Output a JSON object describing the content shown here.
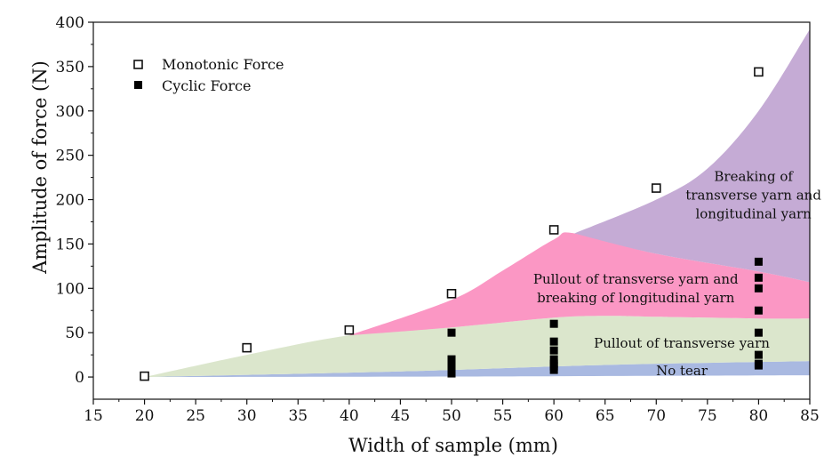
{
  "chart_data": {
    "type": "scatter",
    "title": "",
    "xlabel": "Width of sample  (mm)",
    "ylabel": "Amplitude of force (N)",
    "xlim": [
      15,
      85
    ],
    "ylim": [
      -25,
      400
    ],
    "xticks": [
      15,
      20,
      25,
      30,
      35,
      40,
      45,
      50,
      55,
      60,
      65,
      70,
      75,
      80,
      85
    ],
    "yticks": [
      0,
      50,
      100,
      150,
      200,
      250,
      300,
      350,
      400
    ],
    "legend_position": "top-left",
    "series": [
      {
        "name": "Monotonic Force",
        "marker": "open-square",
        "x": [
          20,
          30,
          40,
          50,
          60,
          70,
          80
        ],
        "y": [
          1,
          33,
          53,
          94,
          166,
          213,
          344
        ]
      },
      {
        "name": "Cyclic Force",
        "marker": "filled-square",
        "x": [
          50,
          50,
          50,
          50,
          50,
          60,
          60,
          60,
          60,
          60,
          60,
          60,
          80,
          80,
          80,
          80,
          80,
          80,
          80,
          80
        ],
        "y": [
          50,
          20,
          15,
          10,
          4,
          60,
          40,
          30,
          20,
          15,
          12,
          8,
          130,
          112,
          100,
          75,
          50,
          25,
          15,
          13
        ]
      }
    ],
    "regions": [
      {
        "label_lines": [
          "No tear"
        ],
        "color": "#a9b9e1",
        "label_at": [
          72.5,
          7
        ],
        "upper": [
          [
            20,
            0
          ],
          [
            40,
            5
          ],
          [
            50,
            8
          ],
          [
            60,
            12
          ],
          [
            70,
            15
          ],
          [
            85,
            18
          ]
        ],
        "lower": [
          [
            20,
            0
          ],
          [
            50,
            0.5
          ],
          [
            85,
            2
          ]
        ]
      },
      {
        "label_lines": [
          "Pullout of transverse yarn"
        ],
        "color": "#dbe6cc",
        "label_at": [
          72.5,
          38
        ],
        "upper": [
          [
            20,
            0
          ],
          [
            30,
            25
          ],
          [
            40,
            47
          ],
          [
            50,
            56
          ],
          [
            60,
            67
          ],
          [
            65,
            69
          ],
          [
            70,
            68
          ],
          [
            80,
            66
          ],
          [
            85,
            66
          ]
        ],
        "lower": [
          [
            20,
            0
          ],
          [
            40,
            5
          ],
          [
            50,
            8
          ],
          [
            60,
            12
          ],
          [
            70,
            15
          ],
          [
            85,
            18
          ]
        ]
      },
      {
        "label_lines": [
          "Pullout of transverse yarn and",
          "breaking of longitudinal yarn"
        ],
        "color": "#fb97c4",
        "label_at": [
          68,
          100
        ],
        "upper": [
          [
            40,
            47
          ],
          [
            50,
            87
          ],
          [
            55,
            120
          ],
          [
            60,
            155
          ],
          [
            62,
            162
          ],
          [
            70,
            139
          ],
          [
            80,
            119
          ],
          [
            85,
            107
          ]
        ],
        "lower": [
          [
            40,
            47
          ],
          [
            50,
            56
          ],
          [
            60,
            67
          ],
          [
            65,
            69
          ],
          [
            70,
            68
          ],
          [
            80,
            66
          ],
          [
            85,
            66
          ]
        ]
      },
      {
        "label_lines": [
          "Breaking of",
          "transverse yarn and",
          "longitudinal yarn"
        ],
        "color": "#c5abd5",
        "label_at": [
          79.5,
          205
        ],
        "upper": [
          [
            62,
            162
          ],
          [
            70,
            200
          ],
          [
            75,
            235
          ],
          [
            80,
            300
          ],
          [
            85,
            392
          ]
        ],
        "lower": [
          [
            62,
            162
          ],
          [
            70,
            139
          ],
          [
            80,
            119
          ],
          [
            85,
            107
          ]
        ]
      }
    ]
  }
}
